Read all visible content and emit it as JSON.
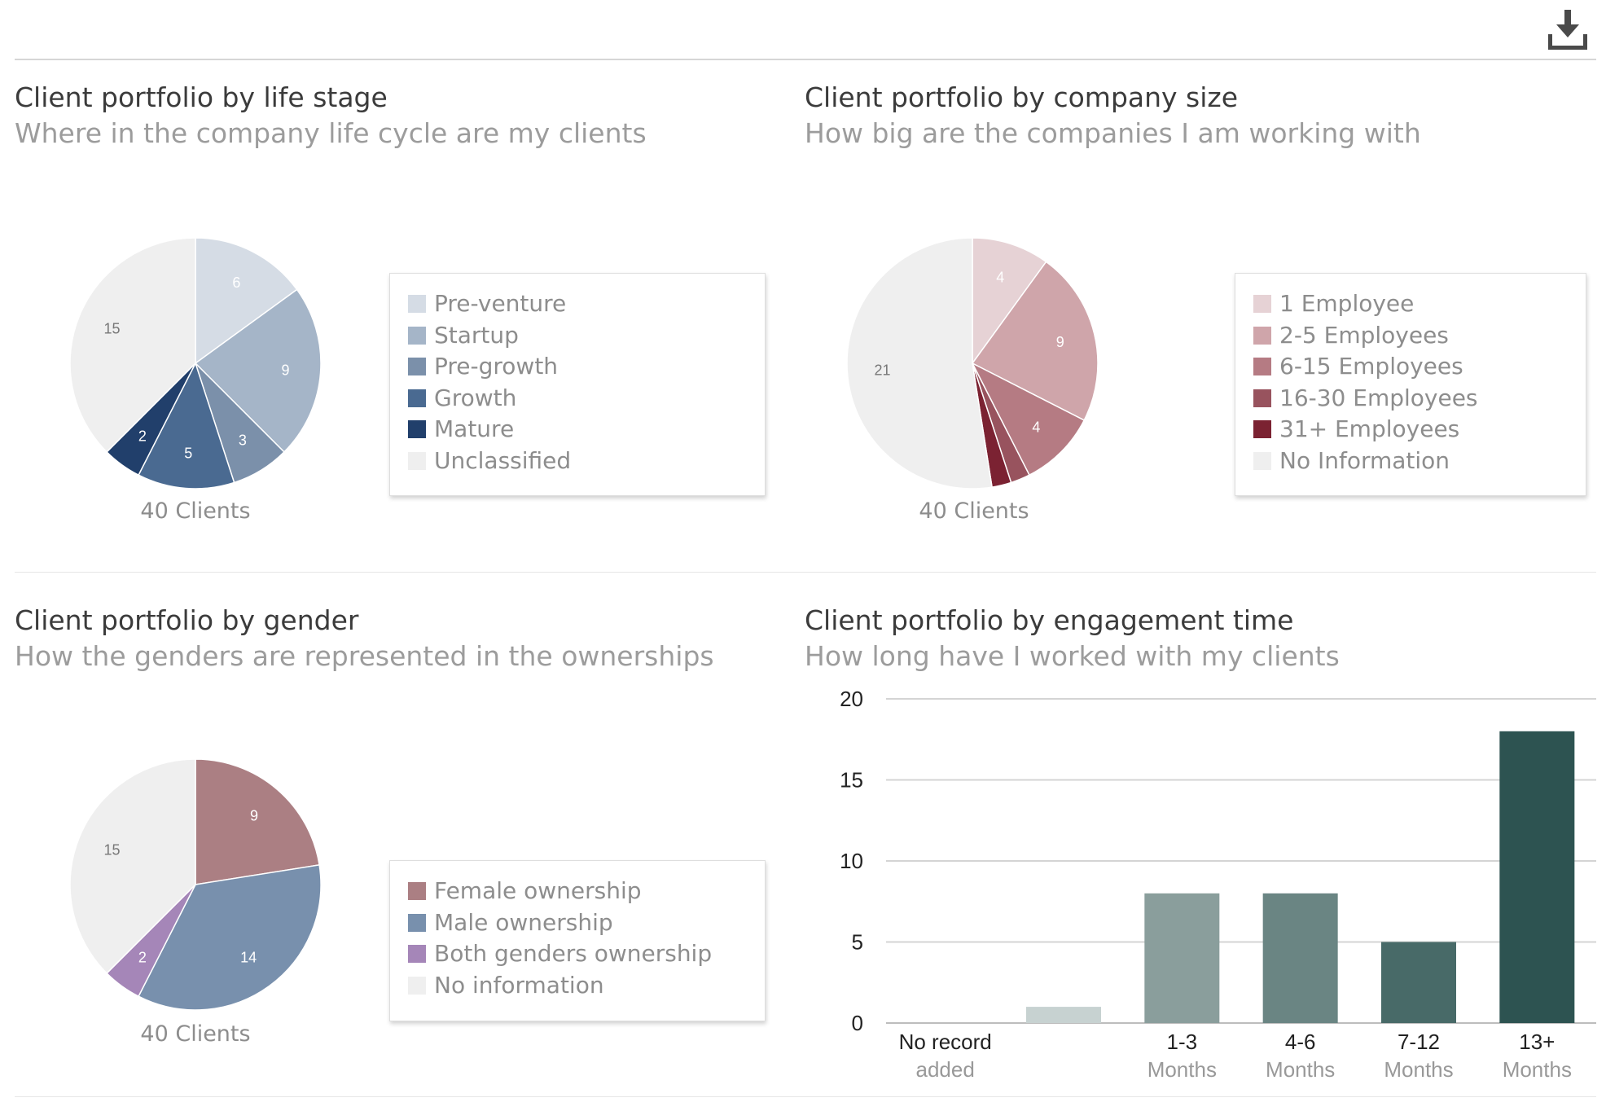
{
  "toolbar": {
    "download_icon": "download-icon"
  },
  "chart_data": [
    {
      "id": "life_stage",
      "type": "pie",
      "title": "Client portfolio by life stage",
      "subtitle": "Where in the company life cycle are my clients",
      "total_label": "40 Clients",
      "slices": [
        {
          "label": "Pre-venture",
          "value": 6,
          "color": "#d5dce5",
          "text_color": "#ffffff"
        },
        {
          "label": "Startup",
          "value": 9,
          "color": "#a5b5c8",
          "text_color": "#ffffff"
        },
        {
          "label": "Pre-growth",
          "value": 3,
          "color": "#7b90aa",
          "text_color": "#ffffff"
        },
        {
          "label": "Growth",
          "value": 5,
          "color": "#4a6a91",
          "text_color": "#ffffff"
        },
        {
          "label": "Mature",
          "value": 2,
          "color": "#213f6b",
          "text_color": "#ffffff"
        },
        {
          "label": "Unclassified",
          "value": 15,
          "color": "#efefef",
          "text_color": "#777777"
        }
      ]
    },
    {
      "id": "company_size",
      "type": "pie",
      "title": "Client portfolio by company size",
      "subtitle": "How big are the companies I am working with",
      "total_label": "40 Clients",
      "slices": [
        {
          "label": "1 Employee",
          "value": 4,
          "color": "#e6d2d5",
          "text_color": "#ffffff"
        },
        {
          "label": "2-5 Employees",
          "value": 9,
          "color": "#cfa5aa",
          "text_color": "#ffffff"
        },
        {
          "label": "6-15 Employees",
          "value": 4,
          "color": "#b57b83",
          "text_color": "#ffffff"
        },
        {
          "label": "16-30 Employees",
          "value": 1,
          "color": "#98535e",
          "text_color": "#ffffff"
        },
        {
          "label": "31+ Employees",
          "value": 1,
          "color": "#7b2232",
          "text_color": "#ffffff"
        },
        {
          "label": "No Information",
          "value": 21,
          "color": "#efefef",
          "text_color": "#777777"
        }
      ]
    },
    {
      "id": "gender",
      "type": "pie",
      "title": "Client portfolio by gender",
      "subtitle": "How the genders are represented in the ownerships",
      "total_label": "40 Clients",
      "slices": [
        {
          "label": "Female ownership",
          "value": 9,
          "color": "#ab7f83",
          "text_color": "#ffffff"
        },
        {
          "label": "Male ownership",
          "value": 14,
          "color": "#7890ad",
          "text_color": "#ffffff"
        },
        {
          "label": "Both genders ownership",
          "value": 2,
          "color": "#a586b8",
          "text_color": "#ffffff"
        },
        {
          "label": "No information",
          "value": 15,
          "color": "#efefef",
          "text_color": "#777777"
        }
      ]
    },
    {
      "id": "engagement_time",
      "type": "bar",
      "title": "Client portfolio by engagement time",
      "subtitle": "How long have I worked with my clients",
      "ylim": [
        0,
        20
      ],
      "yticks": [
        0,
        5,
        10,
        15,
        20
      ],
      "bars": [
        {
          "label1": "No record",
          "label2": "added",
          "value": 0,
          "color": "#c7d0d0"
        },
        {
          "label1": "",
          "label2": "",
          "value": 1,
          "color": "#c7d2d1"
        },
        {
          "label1": "1-3",
          "label2": "Months",
          "value": 8,
          "color": "#8a9e9c"
        },
        {
          "label1": "4-6",
          "label2": "Months",
          "value": 8,
          "color": "#6a8583"
        },
        {
          "label1": "7-12",
          "label2": "Months",
          "value": 5,
          "color": "#486a68"
        },
        {
          "label1": "13+",
          "label2": "Months",
          "value": 18,
          "color": "#2d5351"
        }
      ]
    }
  ]
}
